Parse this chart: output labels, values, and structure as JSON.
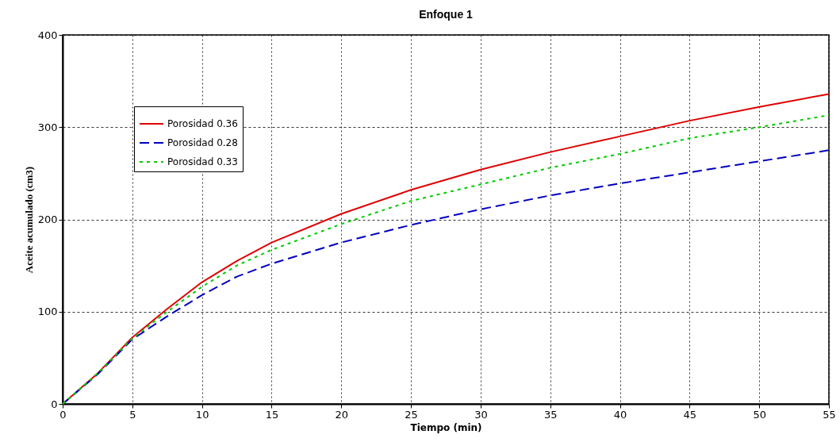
{
  "chart_data": {
    "type": "line",
    "title": "Enfoque 1",
    "xlabel": "Tiempo (min)",
    "ylabel": "Aceite acumulado (cm3)",
    "x": [
      0,
      2.5,
      5,
      7.5,
      10,
      12.5,
      15,
      20,
      25,
      30,
      35,
      40,
      45,
      50,
      55
    ],
    "series": [
      {
        "name": "Porosidad 0.36",
        "color": "#e00000",
        "line_style": "solid",
        "values": [
          0,
          33,
          72,
          103,
          132,
          155,
          175,
          206,
          232,
          254,
          273,
          290,
          307,
          322,
          336
        ]
      },
      {
        "name": "Porosidad 0.28",
        "color": "#0000c0",
        "line_style": "dashed",
        "values": [
          0,
          32,
          70,
          95,
          118,
          138,
          152,
          175,
          194,
          211,
          226,
          239,
          251,
          263,
          275
        ]
      },
      {
        "name": "Porosidad 0.33",
        "color": "#00cc00",
        "line_style": "dotted",
        "values": [
          0,
          33,
          71,
          100,
          127,
          150,
          167,
          195,
          220,
          238,
          256,
          271,
          288,
          300,
          313
        ]
      }
    ],
    "xlim": [
      0,
      55
    ],
    "xticks": [
      0,
      5,
      10,
      15,
      20,
      25,
      30,
      35,
      40,
      45,
      50,
      55
    ],
    "ylim": [
      0,
      400
    ],
    "yticks": [
      0,
      100,
      200,
      300,
      400
    ],
    "grid": true,
    "legend": "top left",
    "marker": "none"
  }
}
